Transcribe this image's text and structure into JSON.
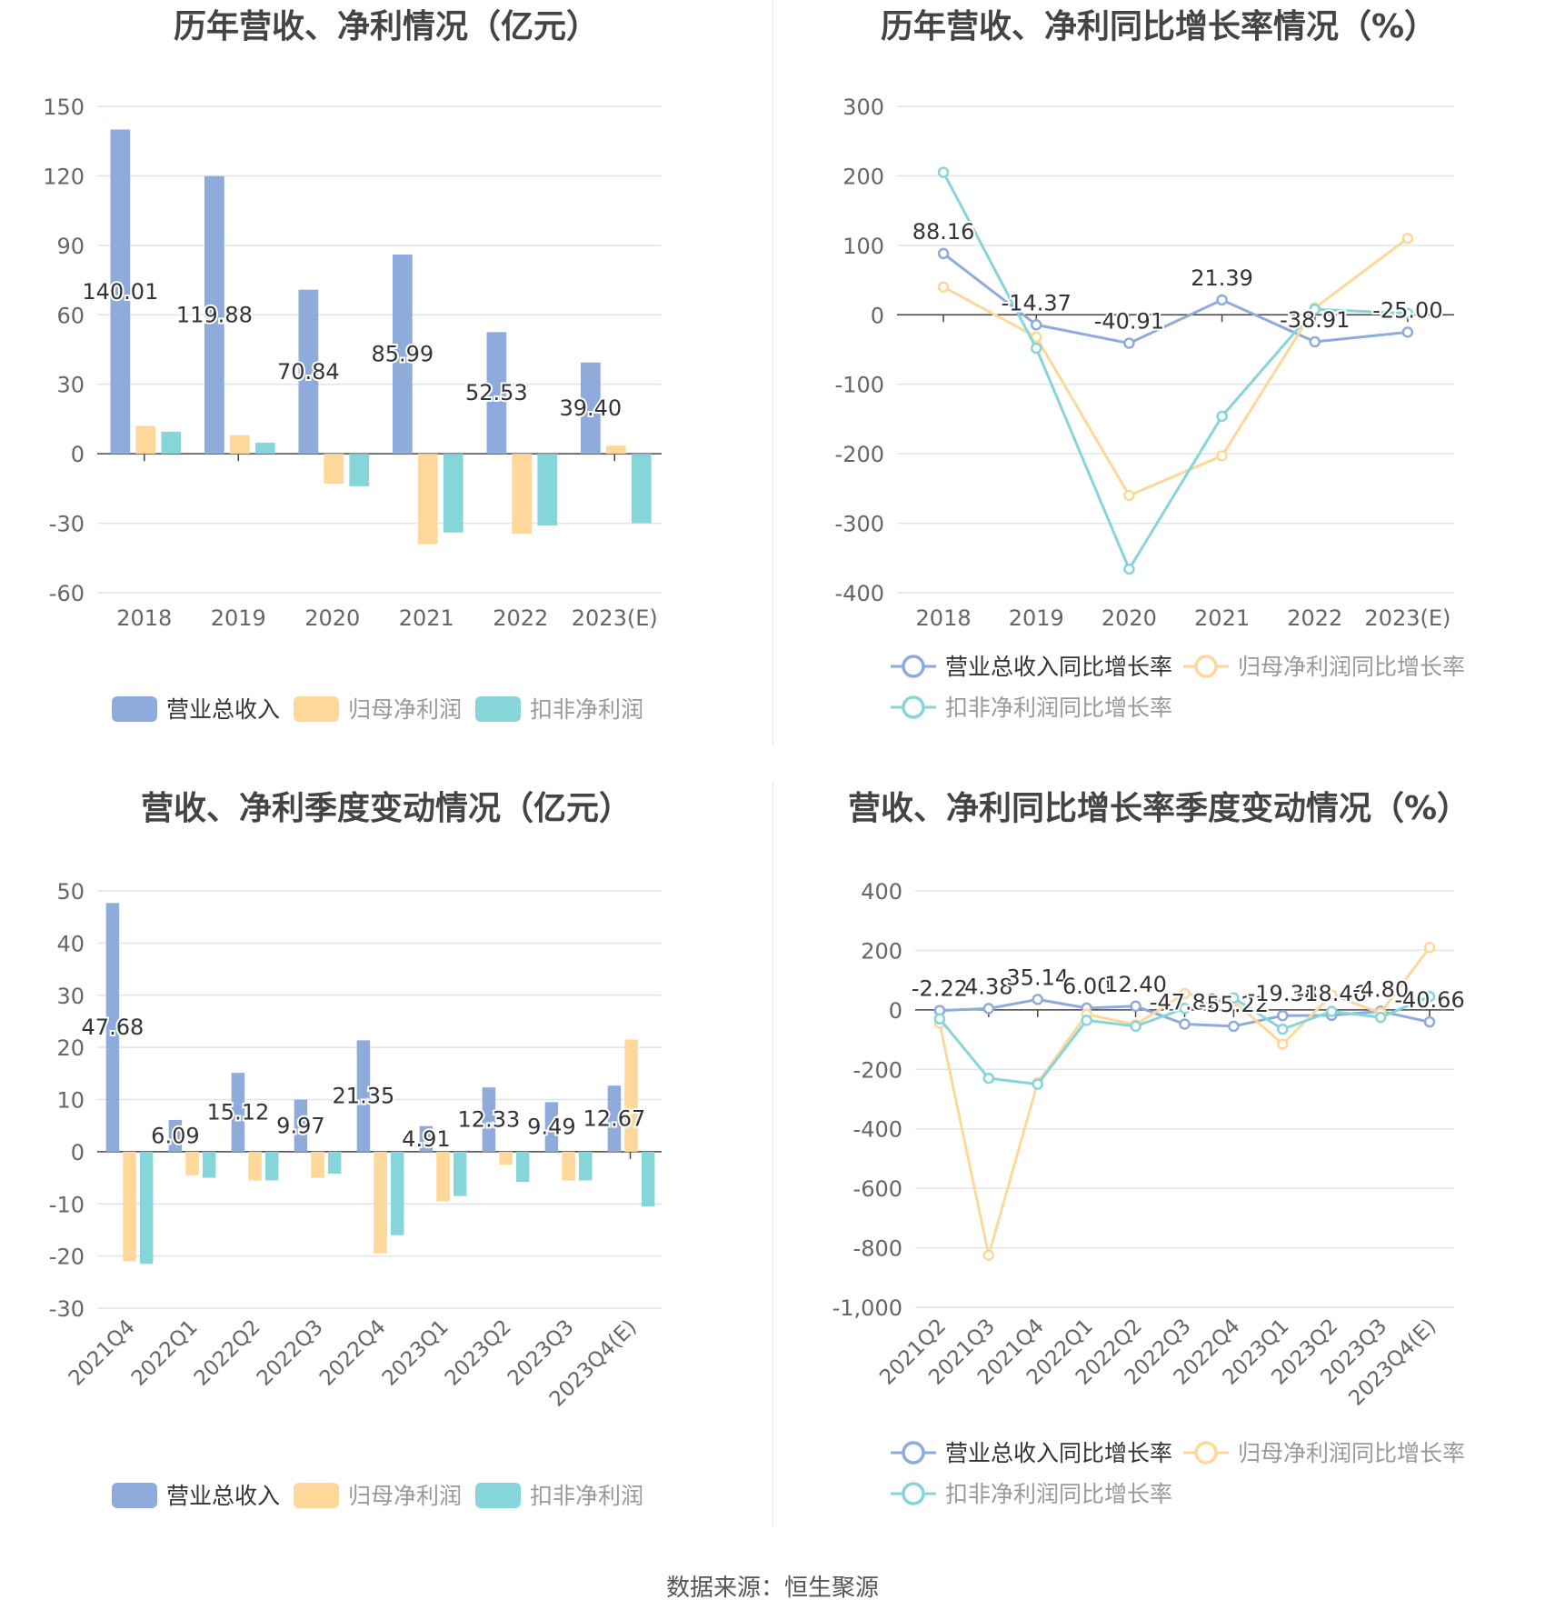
{
  "colors": {
    "revenue": "#8eabdc",
    "net": "#fdd89a",
    "deducted": "#86d5d9",
    "grid": "#e0e4ef",
    "axis": "#444",
    "tick": "#666"
  },
  "legend_bar": [
    "营业总收入",
    "归母净利润",
    "扣非净利润"
  ],
  "legend_line": [
    "营业总收入同比增长率",
    "归母净利润同比增长率",
    "扣非净利润同比增长率"
  ],
  "source": "数据来源：恒生聚源",
  "chart_data": [
    {
      "id": "annual_values",
      "type": "bar",
      "title": "历年营收、净利情况（亿元）",
      "categories": [
        "2018",
        "2019",
        "2020",
        "2021",
        "2022",
        "2023(E)"
      ],
      "ylim": [
        -60,
        150
      ],
      "yticks": [
        150,
        120,
        90,
        60,
        30,
        0,
        -30,
        -60
      ],
      "series": [
        {
          "name": "营业总收入",
          "values": [
            140.01,
            119.88,
            70.84,
            85.99,
            52.53,
            39.4
          ]
        },
        {
          "name": "归母净利润",
          "values": [
            12.0,
            8.0,
            -13.0,
            -39.0,
            -34.5,
            3.5
          ]
        },
        {
          "name": "扣非净利润",
          "values": [
            9.5,
            4.8,
            -14.0,
            -34.0,
            -31.0,
            -30.0
          ]
        }
      ],
      "data_labels": [
        "140.01",
        "119.88",
        "70.84",
        "85.99",
        "52.53",
        "39.40"
      ],
      "grid": true,
      "legend": "bottom"
    },
    {
      "id": "annual_growth",
      "type": "line",
      "title": "历年营收、净利同比增长率情况（%）",
      "categories": [
        "2018",
        "2019",
        "2020",
        "2021",
        "2022",
        "2023(E)"
      ],
      "ylim": [
        -400,
        300
      ],
      "yticks": [
        300,
        200,
        100,
        0,
        -100,
        -200,
        -300,
        -400
      ],
      "series": [
        {
          "name": "营业总收入同比增长率",
          "values": [
            88.16,
            -14.37,
            -40.91,
            21.39,
            -38.91,
            -25.0
          ]
        },
        {
          "name": "归母净利润同比增长率",
          "values": [
            40,
            -32,
            -260,
            -203,
            10,
            110
          ]
        },
        {
          "name": "扣非净利润同比增长率",
          "values": [
            205,
            -48,
            -366,
            -146,
            8,
            2
          ]
        }
      ],
      "data_labels": [
        "88.16",
        "-14.37",
        "-40.91",
        "21.39",
        "-38.91",
        "-25.00"
      ],
      "grid": true,
      "legend": "bottom"
    },
    {
      "id": "quarter_values",
      "type": "bar",
      "title": "营收、净利季度变动情况（亿元）",
      "categories": [
        "2021Q4",
        "2022Q1",
        "2022Q2",
        "2022Q3",
        "2022Q4",
        "2023Q1",
        "2023Q2",
        "2023Q3",
        "2023Q4(E)"
      ],
      "ylim": [
        -30,
        50
      ],
      "yticks": [
        50,
        40,
        30,
        20,
        10,
        0,
        -10,
        -20,
        -30
      ],
      "series": [
        {
          "name": "营业总收入",
          "values": [
            47.68,
            6.09,
            15.12,
            9.97,
            21.35,
            4.91,
            12.33,
            9.49,
            12.67
          ]
        },
        {
          "name": "归母净利润",
          "values": [
            -21.0,
            -4.5,
            -5.5,
            -5.0,
            -19.5,
            -9.5,
            -2.5,
            -5.5,
            21.5
          ]
        },
        {
          "name": "扣非净利润",
          "values": [
            -21.5,
            -5.0,
            -5.5,
            -4.2,
            -16.0,
            -8.5,
            -5.8,
            -5.5,
            -10.5
          ]
        }
      ],
      "data_labels": [
        "47.68",
        "6.09",
        "15.12",
        "9.97",
        "21.35",
        "4.91",
        "12.33",
        "9.49",
        "12.67"
      ],
      "grid": true,
      "legend": "bottom"
    },
    {
      "id": "quarter_growth",
      "type": "line",
      "title": "营收、净利同比增长率季度变动情况（%）",
      "categories": [
        "2021Q2",
        "2021Q3",
        "2021Q4",
        "2022Q1",
        "2022Q2",
        "2022Q3",
        "2022Q4",
        "2023Q1",
        "2023Q2",
        "2023Q3",
        "2023Q4(E)"
      ],
      "ylim": [
        -1000,
        400
      ],
      "yticks": [
        400,
        200,
        0,
        -200,
        -400,
        -600,
        -800,
        -1000
      ],
      "ytick_labels": [
        "400",
        "200",
        "0",
        "-200",
        "-400",
        "-600",
        "-800",
        "-1,000"
      ],
      "series": [
        {
          "name": "营业总收入同比增长率",
          "values": [
            -2.22,
            4.38,
            35.14,
            6.0,
            12.4,
            -47.82,
            -55.22,
            -19.38,
            -18.46,
            -4.8,
            -40.66
          ]
        },
        {
          "name": "归母净利润同比增长率",
          "values": [
            -45,
            -825,
            -245,
            -15,
            -50,
            55,
            30,
            -115,
            50,
            -10,
            210
          ]
        },
        {
          "name": "扣非净利润同比增长率",
          "values": [
            -30,
            -230,
            -250,
            -35,
            -55,
            5,
            40,
            -65,
            -5,
            -25,
            45
          ]
        }
      ],
      "data_labels": [
        "-2.22",
        "4.38",
        "35.14",
        "6.00",
        "12.40",
        "-47.82",
        "-55.22",
        "-19.38",
        "-18.46",
        "-4.80",
        "-40.66"
      ],
      "grid": true,
      "legend": "bottom"
    }
  ]
}
